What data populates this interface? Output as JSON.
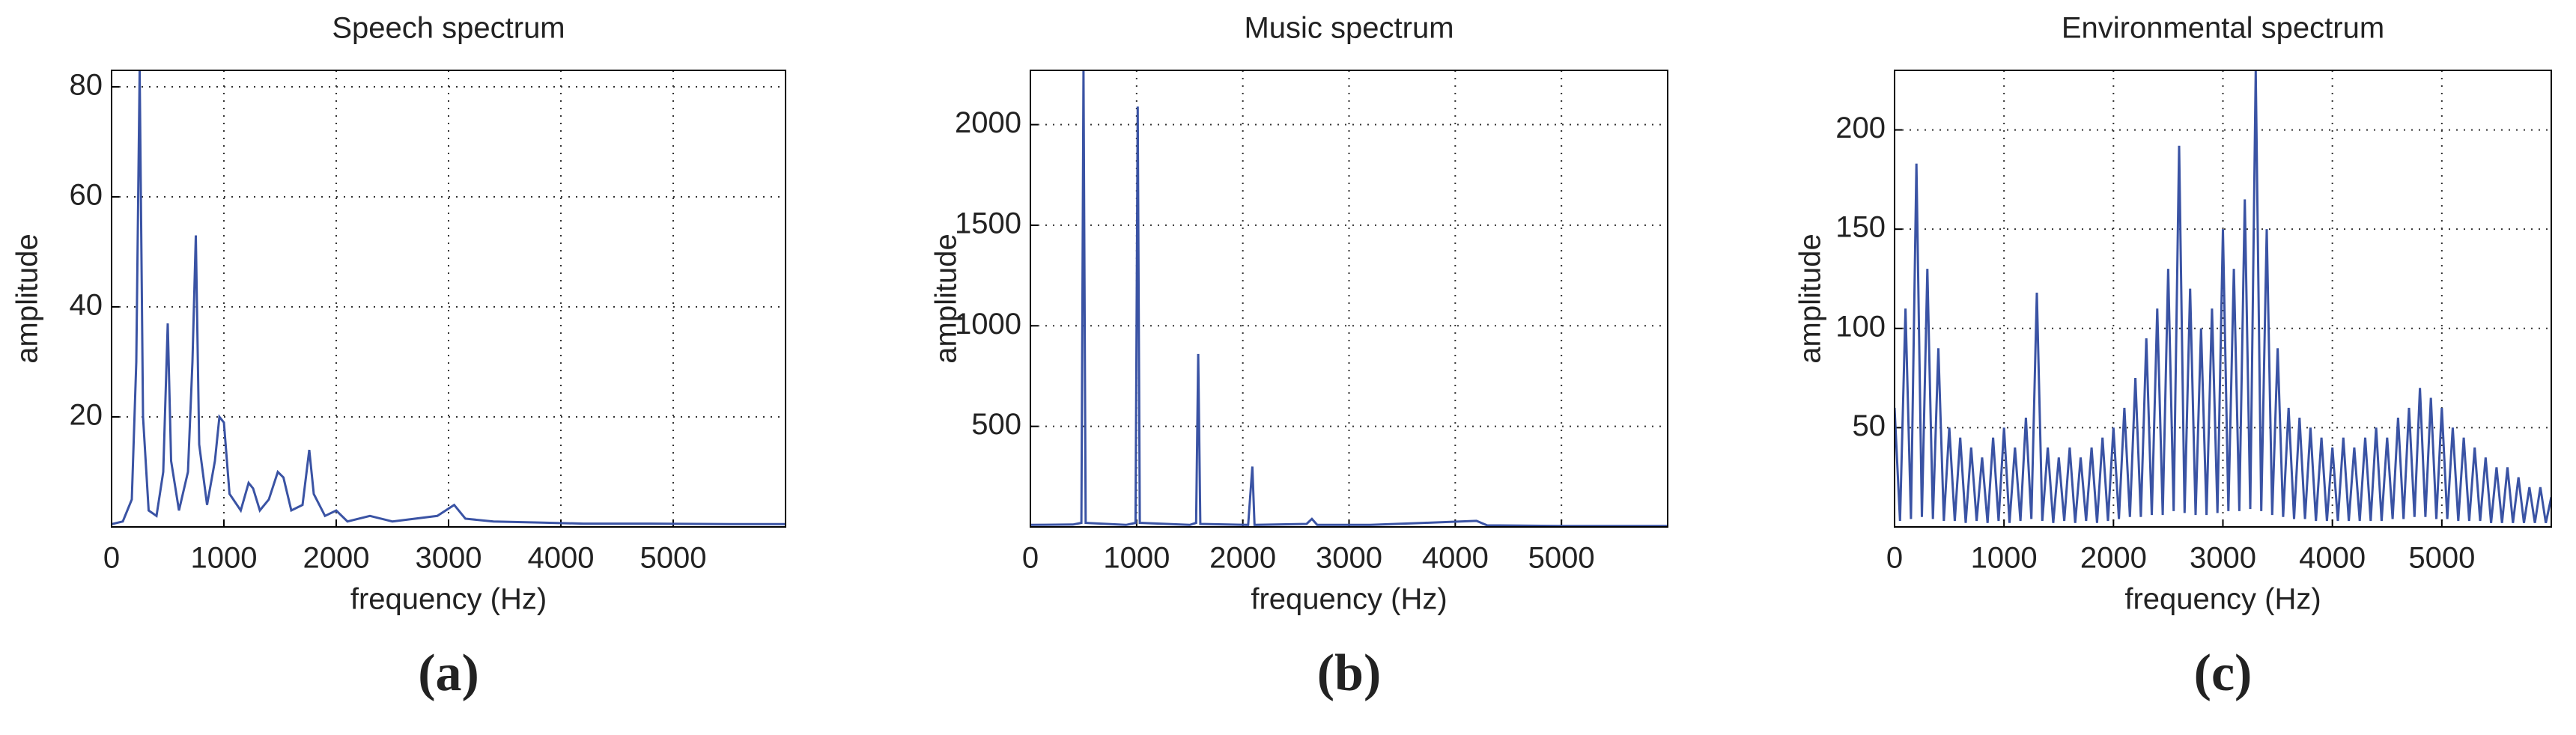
{
  "chart_data": [
    {
      "type": "line",
      "title": "Speech spectrum",
      "xlabel": "frequency (Hz)",
      "ylabel": "amplitude",
      "panel_label": "(a)",
      "xlim": [
        0,
        6000
      ],
      "xticks": [
        0,
        1000,
        2000,
        3000,
        4000,
        5000
      ],
      "ylim": [
        0,
        83
      ],
      "yticks": [
        20,
        40,
        60,
        80
      ],
      "grid": true,
      "series": [
        {
          "color": "#3a53a4",
          "x": [
            0,
            100,
            180,
            220,
            250,
            280,
            330,
            400,
            460,
            500,
            530,
            600,
            680,
            720,
            750,
            780,
            850,
            920,
            960,
            1000,
            1050,
            1150,
            1220,
            1260,
            1320,
            1400,
            1480,
            1530,
            1600,
            1700,
            1760,
            1800,
            1900,
            2000,
            2100,
            2300,
            2500,
            2700,
            2900,
            3050,
            3150,
            3400,
            3800,
            4200,
            4800,
            5500,
            6000
          ],
          "values": [
            0.5,
            1,
            5,
            30,
            83,
            20,
            3,
            2,
            10,
            37,
            12,
            3,
            10,
            30,
            53,
            15,
            4,
            12,
            20,
            19,
            6,
            3,
            8,
            7,
            3,
            5,
            10,
            9,
            3,
            4,
            14,
            6,
            2,
            3,
            1,
            2,
            1,
            1.5,
            2,
            4,
            1.5,
            1,
            0.8,
            0.6,
            0.6,
            0.5,
            0.5
          ]
        }
      ]
    },
    {
      "type": "line",
      "title": "Music spectrum",
      "xlabel": "frequency (Hz)",
      "ylabel": "amplitude",
      "panel_label": "(b)",
      "xlim": [
        0,
        6000
      ],
      "xticks": [
        0,
        1000,
        2000,
        3000,
        4000,
        5000
      ],
      "ylim": [
        0,
        2270
      ],
      "yticks": [
        500,
        1000,
        1500,
        2000
      ],
      "grid": true,
      "series": [
        {
          "color": "#3a53a4",
          "x": [
            0,
            400,
            480,
            500,
            520,
            900,
            990,
            1010,
            1030,
            1500,
            1560,
            1580,
            1600,
            2050,
            2090,
            2110,
            2600,
            2650,
            2700,
            3200,
            3700,
            4200,
            4300,
            5000,
            6000
          ],
          "values": [
            10,
            12,
            20,
            2270,
            20,
            10,
            20,
            2090,
            20,
            10,
            20,
            860,
            15,
            10,
            300,
            10,
            15,
            40,
            10,
            10,
            20,
            30,
            8,
            5,
            5
          ]
        }
      ]
    },
    {
      "type": "line",
      "title": "Environmental spectrum",
      "xlabel": "frequency (Hz)",
      "ylabel": "amplitude",
      "panel_label": "(c)",
      "xlim": [
        0,
        6000
      ],
      "xticks": [
        0,
        1000,
        2000,
        3000,
        4000,
        5000
      ],
      "ylim": [
        0,
        230
      ],
      "yticks": [
        50,
        100,
        150,
        200
      ],
      "grid": true,
      "series": [
        {
          "color": "#3a53a4",
          "x": [
            0,
            50,
            100,
            150,
            200,
            250,
            300,
            350,
            400,
            450,
            500,
            550,
            600,
            650,
            700,
            750,
            800,
            850,
            900,
            950,
            1000,
            1050,
            1100,
            1150,
            1200,
            1250,
            1300,
            1350,
            1400,
            1450,
            1500,
            1550,
            1600,
            1650,
            1700,
            1750,
            1800,
            1850,
            1900,
            1950,
            2000,
            2050,
            2100,
            2150,
            2200,
            2250,
            2300,
            2350,
            2400,
            2450,
            2500,
            2550,
            2600,
            2650,
            2700,
            2750,
            2800,
            2850,
            2900,
            2950,
            3000,
            3050,
            3100,
            3150,
            3200,
            3250,
            3300,
            3350,
            3400,
            3450,
            3500,
            3550,
            3600,
            3650,
            3700,
            3750,
            3800,
            3850,
            3900,
            3950,
            4000,
            4050,
            4100,
            4150,
            4200,
            4250,
            4300,
            4350,
            4400,
            4450,
            4500,
            4550,
            4600,
            4650,
            4700,
            4750,
            4800,
            4850,
            4900,
            4950,
            5000,
            5050,
            5100,
            5150,
            5200,
            5250,
            5300,
            5350,
            5400,
            5450,
            5500,
            5550,
            5600,
            5650,
            5700,
            5750,
            5800,
            5850,
            5900,
            5950,
            6000
          ],
          "values": [
            60,
            3,
            110,
            4,
            183,
            5,
            130,
            4,
            90,
            3,
            50,
            3,
            45,
            2,
            40,
            3,
            35,
            2,
            45,
            3,
            50,
            2,
            40,
            3,
            55,
            4,
            118,
            3,
            40,
            2,
            35,
            3,
            40,
            2,
            35,
            3,
            40,
            2,
            45,
            3,
            50,
            4,
            60,
            5,
            75,
            5,
            95,
            6,
            110,
            6,
            130,
            8,
            192,
            7,
            120,
            6,
            100,
            6,
            110,
            7,
            150,
            8,
            130,
            8,
            165,
            9,
            230,
            8,
            150,
            6,
            90,
            5,
            60,
            4,
            55,
            4,
            50,
            3,
            45,
            3,
            40,
            3,
            45,
            3,
            40,
            3,
            45,
            3,
            50,
            3,
            45,
            4,
            55,
            4,
            60,
            5,
            70,
            5,
            65,
            4,
            60,
            4,
            50,
            3,
            45,
            3,
            40,
            3,
            35,
            2,
            30,
            2,
            30,
            2,
            25,
            2,
            20,
            2,
            20,
            2,
            15
          ]
        }
      ]
    }
  ]
}
